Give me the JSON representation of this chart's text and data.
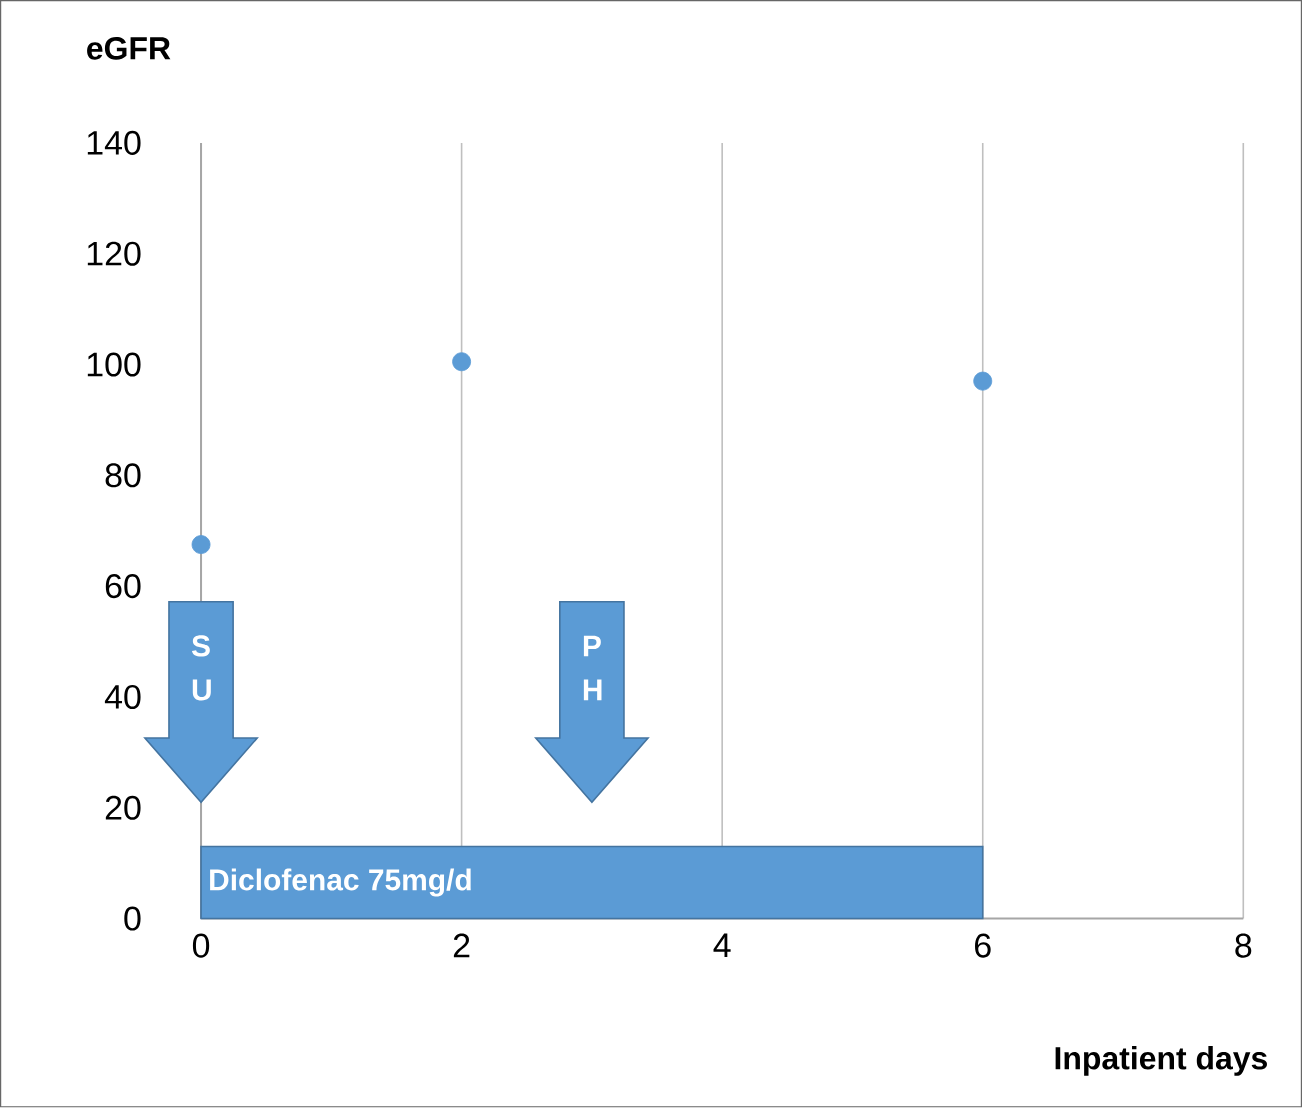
{
  "chart_data": {
    "type": "scatter",
    "xlabel": "Inpatient days",
    "ylabel": "eGFR",
    "x": [
      0,
      2,
      6
    ],
    "values": [
      67.5,
      100.5,
      97
    ],
    "color": "#5b9bd5",
    "marker": "circle",
    "xlim": [
      0,
      8
    ],
    "xticks": [
      0,
      2,
      4,
      6,
      8
    ],
    "ylim": [
      0,
      140
    ],
    "yticks": [
      0,
      20,
      40,
      60,
      80,
      100,
      120,
      140
    ],
    "grid": "x",
    "bands": [
      {
        "axis": "x",
        "from": 0,
        "to": 6,
        "label": "Diclofenac 75mg/d",
        "color": "#5b9bd5"
      }
    ],
    "annotations": [
      "S U",
      "P H"
    ]
  }
}
